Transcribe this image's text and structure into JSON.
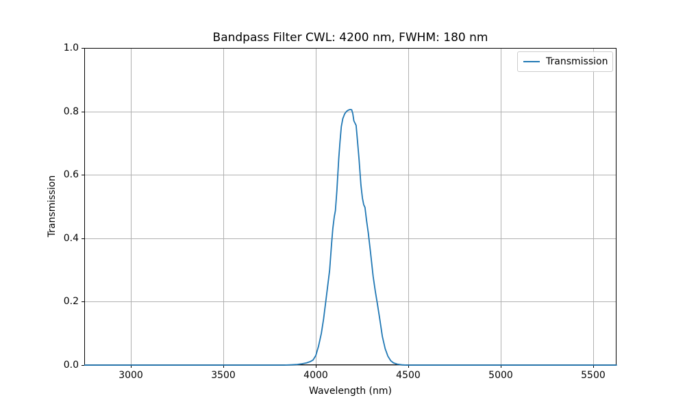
{
  "figure": {
    "background": "#ffffff"
  },
  "chart_data": {
    "type": "line",
    "title": "Bandpass Filter CWL: 4200 nm, FWHM: 180 nm",
    "xlabel": "Wavelength (nm)",
    "ylabel": "Transmission",
    "xlim": [
      2748,
      5626
    ],
    "ylim": [
      0.0,
      1.0
    ],
    "x_ticks": [
      {
        "v": 3000,
        "label": "3000"
      },
      {
        "v": 3500,
        "label": "3500"
      },
      {
        "v": 4000,
        "label": "4000"
      },
      {
        "v": 4500,
        "label": "4500"
      },
      {
        "v": 5000,
        "label": "5000"
      },
      {
        "v": 5500,
        "label": "5500"
      }
    ],
    "y_ticks": [
      {
        "v": 0.0,
        "label": "0.0"
      },
      {
        "v": 0.2,
        "label": "0.2"
      },
      {
        "v": 0.4,
        "label": "0.4"
      },
      {
        "v": 0.6,
        "label": "0.6"
      },
      {
        "v": 0.8,
        "label": "0.8"
      },
      {
        "v": 1.0,
        "label": "1.0"
      }
    ],
    "grid": true,
    "legend": {
      "position": "upper right",
      "labels": [
        "Transmission"
      ]
    },
    "colors": {
      "line": "#1f77b4",
      "grid": "#b0b0b0",
      "spine": "#000000",
      "text": "#000000",
      "legend_border": "#cccccc"
    },
    "series": [
      {
        "name": "Transmission",
        "color": "#1f77b4",
        "points": [
          [
            2750,
            0
          ],
          [
            2850,
            0
          ],
          [
            2950,
            0
          ],
          [
            3050,
            0
          ],
          [
            3150,
            0
          ],
          [
            3250,
            0
          ],
          [
            3350,
            0
          ],
          [
            3450,
            0
          ],
          [
            3550,
            0
          ],
          [
            3650,
            0
          ],
          [
            3750,
            0
          ],
          [
            3830,
            0
          ],
          [
            3870,
            0.001
          ],
          [
            3900,
            0.002
          ],
          [
            3925,
            0.004
          ],
          [
            3950,
            0.007
          ],
          [
            3970,
            0.011
          ],
          [
            3985,
            0.016
          ],
          [
            4000,
            0.03
          ],
          [
            4015,
            0.06
          ],
          [
            4030,
            0.1
          ],
          [
            4042,
            0.145
          ],
          [
            4056,
            0.21
          ],
          [
            4075,
            0.3
          ],
          [
            4085,
            0.38
          ],
          [
            4092,
            0.43
          ],
          [
            4100,
            0.468
          ],
          [
            4106,
            0.487
          ],
          [
            4114,
            0.55
          ],
          [
            4124,
            0.65
          ],
          [
            4131,
            0.705
          ],
          [
            4138,
            0.752
          ],
          [
            4146,
            0.777
          ],
          [
            4156,
            0.792
          ],
          [
            4166,
            0.8
          ],
          [
            4176,
            0.804
          ],
          [
            4186,
            0.806
          ],
          [
            4194,
            0.805
          ],
          [
            4200,
            0.793
          ],
          [
            4206,
            0.77
          ],
          [
            4212,
            0.763
          ],
          [
            4218,
            0.756
          ],
          [
            4226,
            0.703
          ],
          [
            4234,
            0.648
          ],
          [
            4244,
            0.568
          ],
          [
            4252,
            0.527
          ],
          [
            4259,
            0.506
          ],
          [
            4266,
            0.497
          ],
          [
            4274,
            0.458
          ],
          [
            4284,
            0.416
          ],
          [
            4296,
            0.355
          ],
          [
            4310,
            0.28
          ],
          [
            4322,
            0.232
          ],
          [
            4332,
            0.197
          ],
          [
            4346,
            0.145
          ],
          [
            4360,
            0.09
          ],
          [
            4375,
            0.052
          ],
          [
            4390,
            0.028
          ],
          [
            4405,
            0.014
          ],
          [
            4420,
            0.007
          ],
          [
            4440,
            0.003
          ],
          [
            4465,
            0.001
          ],
          [
            4490,
            0
          ],
          [
            4550,
            0
          ],
          [
            4650,
            0
          ],
          [
            4750,
            0
          ],
          [
            4850,
            0
          ],
          [
            4950,
            0
          ],
          [
            5050,
            0
          ],
          [
            5150,
            0
          ],
          [
            5250,
            0
          ],
          [
            5350,
            0
          ],
          [
            5450,
            0
          ],
          [
            5550,
            0
          ],
          [
            5626,
            0
          ]
        ]
      }
    ]
  }
}
